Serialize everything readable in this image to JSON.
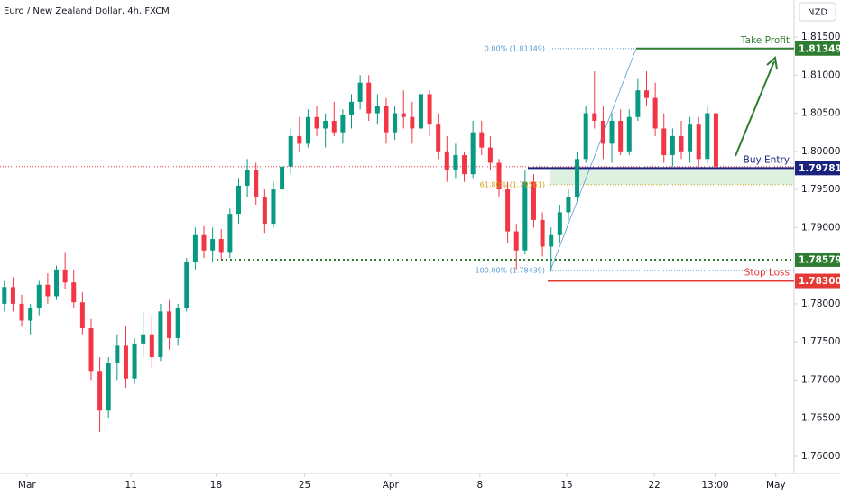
{
  "chart_data": {
    "type": "candlestick",
    "title": "Euro / New Zealand Dollar, 4h, FXCM",
    "currency": "NZD",
    "up_color": "#089981",
    "down_color": "#f23645",
    "ylim": [
      1.75775,
      1.81985
    ],
    "yticks": [
      {
        "value": 1.815,
        "label": "1.81500"
      },
      {
        "value": 1.81,
        "label": "1.81000"
      },
      {
        "value": 1.805,
        "label": "1.80500"
      },
      {
        "value": 1.8,
        "label": "1.80000"
      },
      {
        "value": 1.795,
        "label": "1.79500"
      },
      {
        "value": 1.79,
        "label": "1.79000"
      },
      {
        "value": 1.78,
        "label": "1.78000"
      },
      {
        "value": 1.775,
        "label": "1.77500"
      },
      {
        "value": 1.77,
        "label": "1.77000"
      },
      {
        "value": 1.765,
        "label": "1.76500"
      },
      {
        "value": 1.76,
        "label": "1.76000"
      }
    ],
    "xlim": [
      -0.5,
      91
    ],
    "xticks": [
      {
        "value": 2.6,
        "label": "Mar"
      },
      {
        "value": 14.6,
        "label": "11"
      },
      {
        "value": 24.4,
        "label": "18"
      },
      {
        "value": 34.6,
        "label": "25"
      },
      {
        "value": 44.5,
        "label": "Apr"
      },
      {
        "value": 54.8,
        "label": "8"
      },
      {
        "value": 64.8,
        "label": "15"
      },
      {
        "value": 74.9,
        "label": "22"
      },
      {
        "value": 81.9,
        "label": "13:00"
      },
      {
        "value": 88.9,
        "label": "May"
      }
    ],
    "levels": [
      {
        "name": "Take Profit",
        "value": 1.81349,
        "label": "1.81349",
        "color": "#2e7d32",
        "style": "solid"
      },
      {
        "name": "Buy Entry",
        "value": 1.79781,
        "label": "1.79781",
        "color": "#1a237e",
        "style": "solid"
      },
      {
        "value": 1.78579,
        "label": "1.78579",
        "color": "#2e7d32",
        "style": "dotted"
      },
      {
        "name": "Stop Loss",
        "value": 1.783,
        "label": "1.78300",
        "color": "#e53935",
        "style": "solid"
      }
    ],
    "fib": [
      {
        "label": "0.00% (1.81349)",
        "value": 1.81349,
        "color": "#5b9bd5"
      },
      {
        "label": "61.80% (1.79561)",
        "value": 1.79561,
        "color": "#d4a017"
      },
      {
        "label": "100.00% (1.78439)",
        "value": 1.78439,
        "color": "#5b9bd5"
      }
    ],
    "candles": [
      [
        1.78,
        1.783,
        1.779,
        1.7822
      ],
      [
        1.7822,
        1.7835,
        1.779,
        1.78
      ],
      [
        1.78,
        1.7812,
        1.777,
        1.7778
      ],
      [
        1.7778,
        1.78,
        1.776,
        1.7795
      ],
      [
        1.7795,
        1.783,
        1.7785,
        1.7825
      ],
      [
        1.7825,
        1.784,
        1.78,
        1.781
      ],
      [
        1.781,
        1.785,
        1.7805,
        1.7845
      ],
      [
        1.7845,
        1.7868,
        1.782,
        1.7828
      ],
      [
        1.7828,
        1.7845,
        1.7795,
        1.7802
      ],
      [
        1.7802,
        1.7815,
        1.776,
        1.7768
      ],
      [
        1.7768,
        1.778,
        1.77,
        1.7712
      ],
      [
        1.7712,
        1.773,
        1.7632,
        1.766
      ],
      [
        1.766,
        1.773,
        1.765,
        1.7722
      ],
      [
        1.7722,
        1.776,
        1.77,
        1.7745
      ],
      [
        1.7745,
        1.777,
        1.769,
        1.7702
      ],
      [
        1.7702,
        1.7755,
        1.7695,
        1.7748
      ],
      [
        1.7748,
        1.779,
        1.773,
        1.776
      ],
      [
        1.776,
        1.7785,
        1.7715,
        1.773
      ],
      [
        1.773,
        1.78,
        1.7725,
        1.779
      ],
      [
        1.779,
        1.7805,
        1.774,
        1.7755
      ],
      [
        1.7755,
        1.78,
        1.7745,
        1.7795
      ],
      [
        1.7795,
        1.786,
        1.779,
        1.7855
      ],
      [
        1.7855,
        1.79,
        1.7845,
        1.789
      ],
      [
        1.789,
        1.7902,
        1.786,
        1.787
      ],
      [
        1.787,
        1.79,
        1.7855,
        1.7885
      ],
      [
        1.7885,
        1.7898,
        1.7858,
        1.7868
      ],
      [
        1.7868,
        1.7925,
        1.786,
        1.7918
      ],
      [
        1.7918,
        1.7965,
        1.7905,
        1.7955
      ],
      [
        1.7955,
        1.799,
        1.794,
        1.7975
      ],
      [
        1.7975,
        1.7985,
        1.793,
        1.794
      ],
      [
        1.794,
        1.795,
        1.7893,
        1.7905
      ],
      [
        1.7905,
        1.796,
        1.79,
        1.795
      ],
      [
        1.795,
        1.799,
        1.794,
        1.798
      ],
      [
        1.798,
        1.803,
        1.797,
        1.802
      ],
      [
        1.802,
        1.8045,
        1.8,
        1.801
      ],
      [
        1.801,
        1.8055,
        1.8005,
        1.8045
      ],
      [
        1.8045,
        1.806,
        1.802,
        1.803
      ],
      [
        1.803,
        1.805,
        1.8005,
        1.804
      ],
      [
        1.804,
        1.8065,
        1.802,
        1.8025
      ],
      [
        1.8025,
        1.8055,
        1.801,
        1.8048
      ],
      [
        1.8048,
        1.8075,
        1.803,
        1.8065
      ],
      [
        1.8065,
        1.81,
        1.8055,
        1.809
      ],
      [
        1.809,
        1.81,
        1.804,
        1.805
      ],
      [
        1.805,
        1.8075,
        1.8035,
        1.806
      ],
      [
        1.806,
        1.807,
        1.801,
        1.8025
      ],
      [
        1.8025,
        1.806,
        1.8015,
        1.805
      ],
      [
        1.805,
        1.808,
        1.803,
        1.8045
      ],
      [
        1.8045,
        1.8065,
        1.801,
        1.803
      ],
      [
        1.803,
        1.8085,
        1.8025,
        1.8075
      ],
      [
        1.8075,
        1.808,
        1.802,
        1.8035
      ],
      [
        1.8035,
        1.805,
        1.799,
        1.8
      ],
      [
        1.8,
        1.802,
        1.796,
        1.7975
      ],
      [
        1.7975,
        1.801,
        1.7965,
        1.7995
      ],
      [
        1.7995,
        1.8,
        1.796,
        1.797
      ],
      [
        1.797,
        1.804,
        1.7965,
        1.8025
      ],
      [
        1.8025,
        1.804,
        1.7995,
        1.8005
      ],
      [
        1.8005,
        1.802,
        1.7975,
        1.7985
      ],
      [
        1.7985,
        1.799,
        1.794,
        1.795
      ],
      [
        1.795,
        1.796,
        1.788,
        1.7895
      ],
      [
        1.7895,
        1.7905,
        1.7845,
        1.787
      ],
      [
        1.787,
        1.7975,
        1.7865,
        1.796
      ],
      [
        1.796,
        1.797,
        1.79,
        1.791
      ],
      [
        1.791,
        1.792,
        1.7862,
        1.7875
      ],
      [
        1.7875,
        1.79,
        1.7842,
        1.789
      ],
      [
        1.789,
        1.793,
        1.788,
        1.792
      ],
      [
        1.792,
        1.795,
        1.791,
        1.794
      ],
      [
        1.794,
        1.8,
        1.7935,
        1.799
      ],
      [
        1.799,
        1.806,
        1.7985,
        1.805
      ],
      [
        1.805,
        1.8105,
        1.803,
        1.804
      ],
      [
        1.804,
        1.806,
        1.799,
        1.801
      ],
      [
        1.801,
        1.805,
        1.7985,
        1.804
      ],
      [
        1.804,
        1.8055,
        1.7995,
        1.8
      ],
      [
        1.8,
        1.8055,
        1.7995,
        1.8045
      ],
      [
        1.8045,
        1.8095,
        1.804,
        1.808
      ],
      [
        1.808,
        1.8105,
        1.806,
        1.807
      ],
      [
        1.807,
        1.809,
        1.802,
        1.803
      ],
      [
        1.803,
        1.805,
        1.7985,
        1.7995
      ],
      [
        1.7995,
        1.803,
        1.798,
        1.802
      ],
      [
        1.802,
        1.804,
        1.799,
        1.8
      ],
      [
        1.8,
        1.8045,
        1.7985,
        1.8035
      ],
      [
        1.8035,
        1.8045,
        1.798,
        1.799
      ],
      [
        1.799,
        1.806,
        1.7985,
        1.805
      ],
      [
        1.805,
        1.8055,
        1.7975,
        1.798
      ]
    ]
  }
}
